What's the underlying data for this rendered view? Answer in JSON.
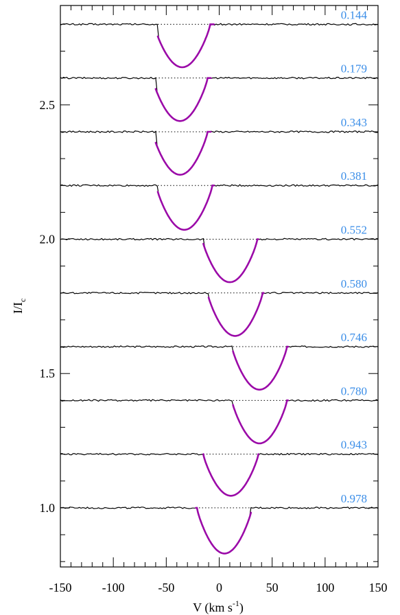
{
  "chart_data": {
    "type": "line",
    "xlabel": {
      "main": "V (km s",
      "sup": "-1",
      "end": ")"
    },
    "ylabel": {
      "main": "I/I",
      "sub": "c"
    },
    "xlim": [
      -150,
      150
    ],
    "ylim": [
      0.78,
      2.87
    ],
    "x_ticks": [
      -150,
      -100,
      -50,
      0,
      50,
      100,
      150
    ],
    "x_tick_labels": [
      "-150",
      "-100",
      "-50",
      "0",
      "50",
      "100",
      "150"
    ],
    "y_ticks": [
      1.0,
      1.5,
      2.0,
      2.5
    ],
    "y_tick_labels": [
      "1.0",
      "1.5",
      "2.0",
      "2.5"
    ],
    "grid": false,
    "colors": {
      "observed": "#000000",
      "model": "#9b0aa8",
      "label": "#3b8ee8",
      "continuum": "#000000"
    },
    "series": [
      {
        "label": "0.144",
        "continuum": 2.8,
        "center": -35,
        "depth": 0.16,
        "left": -58,
        "right": -5
      },
      {
        "label": "0.179",
        "continuum": 2.6,
        "center": -37,
        "depth": 0.16,
        "left": -60,
        "right": -8
      },
      {
        "label": "0.343",
        "continuum": 2.4,
        "center": -37,
        "depth": 0.16,
        "left": -60,
        "right": -8
      },
      {
        "label": "0.381",
        "continuum": 2.2,
        "center": -33,
        "depth": 0.165,
        "left": -58,
        "right": -5
      },
      {
        "label": "0.552",
        "continuum": 2.0,
        "center": 10,
        "depth": 0.16,
        "left": -15,
        "right": 37
      },
      {
        "label": "0.580",
        "continuum": 1.8,
        "center": 15,
        "depth": 0.16,
        "left": -10,
        "right": 42
      },
      {
        "label": "0.746",
        "continuum": 1.6,
        "center": 38,
        "depth": 0.16,
        "left": 13,
        "right": 65
      },
      {
        "label": "0.780",
        "continuum": 1.4,
        "center": 38,
        "depth": 0.16,
        "left": 13,
        "right": 65
      },
      {
        "label": "0.943",
        "continuum": 1.2,
        "center": 11,
        "depth": 0.155,
        "left": -15,
        "right": 37
      },
      {
        "label": "0.978",
        "continuum": 1.0,
        "center": 5,
        "depth": 0.17,
        "left": -22,
        "right": 30
      }
    ]
  }
}
